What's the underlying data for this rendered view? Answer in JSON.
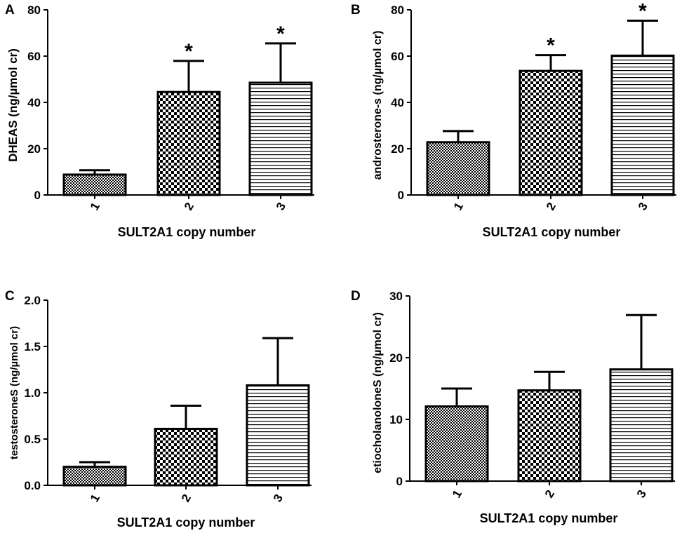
{
  "figure_xlabel": "SULT2A1 copy number",
  "chart_data": [
    {
      "panel": "A",
      "type": "bar",
      "categories": [
        "1",
        "2",
        "3"
      ],
      "values": [
        8.8,
        44.5,
        48.5
      ],
      "errors": [
        1.9,
        13.4,
        17.0
      ],
      "significance": [
        "",
        "*",
        "*"
      ],
      "ylabel": "DHEAS (ng/µmol cr)",
      "xlabel": "SULT2A1 copy number",
      "ylim": [
        0,
        80
      ],
      "yticks": [
        "0",
        "20",
        "40",
        "60",
        "80"
      ]
    },
    {
      "panel": "B",
      "type": "bar",
      "categories": [
        "1",
        "2",
        "3"
      ],
      "values": [
        22.8,
        53.6,
        60.2
      ],
      "errors": [
        4.8,
        6.8,
        15.1
      ],
      "significance": [
        "",
        "*",
        "*"
      ],
      "ylabel": "androsterone-s (ng/µmol cr)",
      "xlabel": "SULT2A1 copy number",
      "ylim": [
        0,
        80
      ],
      "yticks": [
        "0",
        "20",
        "40",
        "60",
        "80"
      ]
    },
    {
      "panel": "C",
      "type": "bar",
      "categories": [
        "1",
        "2",
        "3"
      ],
      "values": [
        0.2,
        0.61,
        1.08
      ],
      "errors": [
        0.05,
        0.25,
        0.51
      ],
      "significance": [
        "",
        "",
        ""
      ],
      "ylabel": "testosteroneS (ng/µmol cr)",
      "xlabel": "SULT2A1 copy number",
      "ylim": [
        0,
        2.0
      ],
      "yticks": [
        "0.0",
        "0.5",
        "1.0",
        "1.5",
        "2.0"
      ]
    },
    {
      "panel": "D",
      "type": "bar",
      "categories": [
        "1",
        "2",
        "3"
      ],
      "values": [
        12.1,
        14.7,
        18.1
      ],
      "errors": [
        2.9,
        3.0,
        8.8
      ],
      "significance": [
        "",
        "",
        ""
      ],
      "ylabel": "etiocholanoloneS (ng/µmol cr)",
      "xlabel": "SULT2A1 copy number",
      "ylim": [
        0,
        30
      ],
      "yticks": [
        "0",
        "10",
        "20",
        "30"
      ]
    }
  ]
}
